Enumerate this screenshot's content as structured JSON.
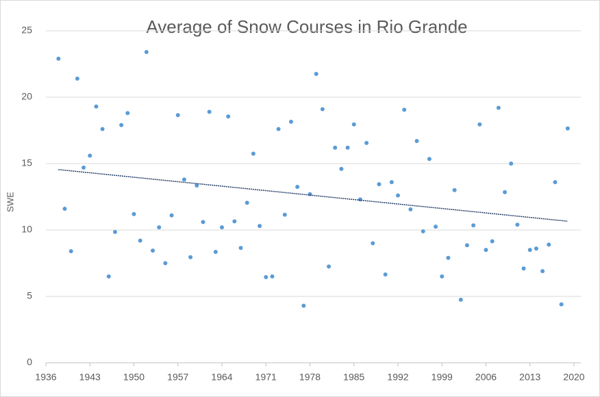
{
  "chart_data": {
    "type": "scatter",
    "title": "Average of Snow Courses in Rio Grande",
    "y_label": "SWE",
    "x": [
      1938,
      1939,
      1940,
      1941,
      1942,
      1943,
      1944,
      1945,
      1946,
      1947,
      1948,
      1949,
      1950,
      1951,
      1952,
      1953,
      1954,
      1955,
      1956,
      1957,
      1958,
      1959,
      1960,
      1961,
      1962,
      1963,
      1964,
      1965,
      1966,
      1967,
      1968,
      1969,
      1970,
      1971,
      1972,
      1973,
      1974,
      1975,
      1976,
      1977,
      1978,
      1979,
      1980,
      1981,
      1982,
      1983,
      1984,
      1985,
      1986,
      1987,
      1988,
      1989,
      1990,
      1991,
      1992,
      1993,
      1994,
      1995,
      1996,
      1997,
      1998,
      1999,
      2000,
      2001,
      2002,
      2003,
      2004,
      2005,
      2006,
      2007,
      2008,
      2009,
      2010,
      2011,
      2012,
      2013,
      2014,
      2015,
      2016,
      2017,
      2018,
      2019
    ],
    "values": [
      22.9,
      11.6,
      8.4,
      21.4,
      14.7,
      15.6,
      19.3,
      17.6,
      6.5,
      9.85,
      17.9,
      18.8,
      11.2,
      9.2,
      23.4,
      8.45,
      10.2,
      7.5,
      11.1,
      18.65,
      13.8,
      7.95,
      13.35,
      10.6,
      18.9,
      8.35,
      10.2,
      18.55,
      10.65,
      8.65,
      12.05,
      15.75,
      10.3,
      6.45,
      6.5,
      17.6,
      11.15,
      18.15,
      13.25,
      4.3,
      12.7,
      21.75,
      19.1,
      7.25,
      16.2,
      14.6,
      16.2,
      17.95,
      12.3,
      16.55,
      9.0,
      13.45,
      6.65,
      13.6,
      12.6,
      19.05,
      11.55,
      16.7,
      9.9,
      15.35,
      10.25,
      6.5,
      7.9,
      13.0,
      4.75,
      8.85,
      10.35,
      17.95,
      8.5,
      9.15,
      19.2,
      12.85,
      15.0,
      10.4,
      7.1,
      8.5,
      8.6,
      6.9,
      8.9,
      13.6,
      4.4,
      17.65
    ],
    "color": "#5b9bd5",
    "trendline": "linear",
    "trendline_color": "#1f3864",
    "xlim": [
      1936,
      2020
    ],
    "xticks": [
      1936,
      1943,
      1950,
      1957,
      1964,
      1971,
      1978,
      1985,
      1992,
      1999,
      2006,
      2013,
      2020
    ],
    "ylim": [
      0,
      25
    ],
    "yticks": [
      0,
      5,
      10,
      15,
      20,
      25
    ],
    "grid": true
  }
}
